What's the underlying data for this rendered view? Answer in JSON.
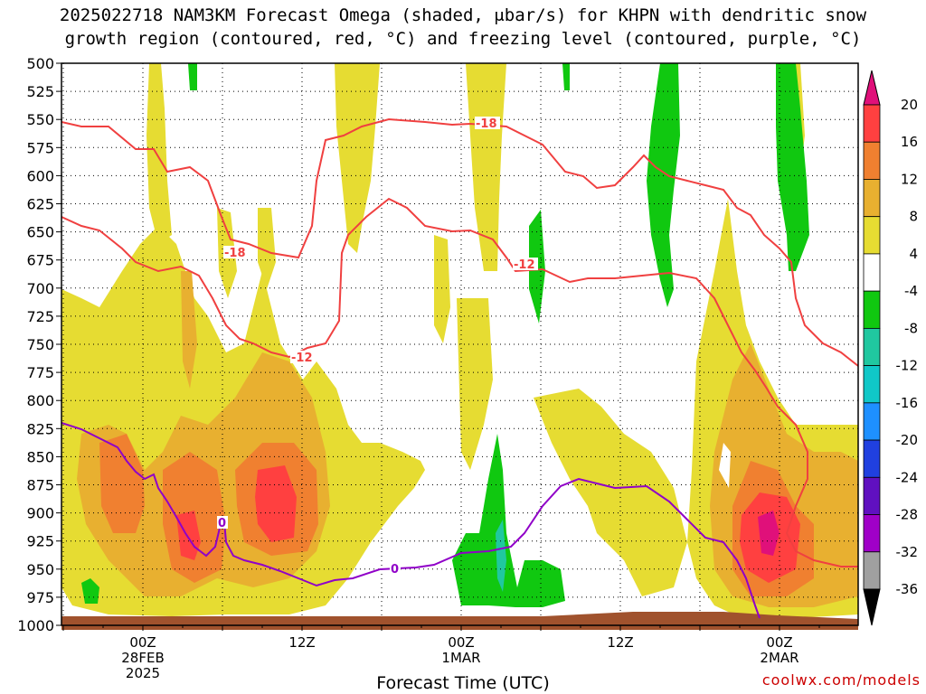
{
  "chart_data": {
    "type": "heatmap",
    "title_line1": "2025022718 NAM3KM Forecast Omega (shaded, μbar/s) for KHPN with dendritic snow",
    "title_line2": "growth region (contoured, red, °C) and freezing level (contoured, purple, °C)",
    "xlabel": "Forecast Time (UTC)",
    "ylabel": "",
    "y_ticks": [
      "500",
      "525",
      "550",
      "575",
      "600",
      "625",
      "650",
      "675",
      "700",
      "725",
      "750",
      "775",
      "800",
      "825",
      "850",
      "875",
      "900",
      "925",
      "950",
      "975",
      "1000"
    ],
    "ylim": [
      1000,
      500
    ],
    "x_ticks": [
      {
        "line1": "00Z",
        "line2": "28FEB",
        "line3": "2025"
      },
      {
        "line1": "12Z",
        "line2": "",
        "line3": ""
      },
      {
        "line1": "00Z",
        "line2": "1MAR",
        "line3": ""
      },
      {
        "line1": "12Z",
        "line2": "",
        "line3": ""
      },
      {
        "line1": "00Z",
        "line2": "2MAR",
        "line3": ""
      }
    ],
    "grid": true,
    "colorbar": {
      "ticks": [
        "20",
        "16",
        "12",
        "8",
        "4",
        "-4",
        "-8",
        "-12",
        "-16",
        "-20",
        "-24",
        "-28",
        "-32",
        "-36"
      ],
      "bins": [
        {
          "range": [
            16,
            20
          ],
          "color": "#ff4040"
        },
        {
          "range": [
            12,
            16
          ],
          "color": "#f08030"
        },
        {
          "range": [
            8,
            12
          ],
          "color": "#e8b030"
        },
        {
          "range": [
            4,
            8
          ],
          "color": "#e6dc32"
        },
        {
          "range": [
            -4,
            4
          ],
          "color": "#ffffff"
        },
        {
          "range": [
            -8,
            -4
          ],
          "color": "#10c810"
        },
        {
          "range": [
            -12,
            -8
          ],
          "color": "#20c8a0"
        },
        {
          "range": [
            -16,
            -12
          ],
          "color": "#10c8c8"
        },
        {
          "range": [
            -20,
            -16
          ],
          "color": "#1e90ff"
        },
        {
          "range": [
            -24,
            -20
          ],
          "color": "#2040e0"
        },
        {
          "range": [
            -28,
            -24
          ],
          "color": "#6010c0"
        },
        {
          "range": [
            -32,
            -28
          ],
          "color": "#a000c8"
        },
        {
          "range": [
            -36,
            -32
          ],
          "color": "#a0a0a0"
        }
      ],
      "top_arrow_color": "#e0107a",
      "bottom_arrow_color": "#000000"
    },
    "contour_labels": {
      "dgz_upper": "-18",
      "dgz_upper_right": "-18",
      "dgz_lower": "-12",
      "dgz_lower_right": "-12",
      "freezing": "0",
      "freezing_right": "0"
    },
    "colors": {
      "dgz_contour": "#f04040",
      "freezing_contour": "#9000c8",
      "terrain": "#a0522d"
    }
  },
  "credit": "coolwx.com/models"
}
